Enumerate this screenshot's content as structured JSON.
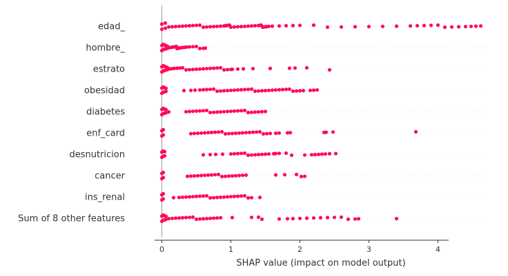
{
  "chart_data": {
    "type": "scatter",
    "title": "",
    "xlabel": "SHAP value (impact on model output)",
    "ylabel": "",
    "xlim": [
      -0.03,
      4.7
    ],
    "x_ticks": [
      0,
      1,
      2,
      3,
      4
    ],
    "x_tick_labels": [
      "0",
      "1",
      "2",
      "3",
      "4"
    ],
    "grid": false,
    "point_color": "#ff0d57",
    "features": [
      {
        "name": "edad_",
        "points": [
          0.0,
          0.05,
          0.1,
          0.15,
          0.2,
          0.25,
          0.3,
          0.35,
          0.4,
          0.45,
          0.5,
          0.55,
          0.6,
          0.65,
          0.7,
          0.75,
          0.8,
          0.85,
          0.9,
          0.92,
          0.94,
          0.96,
          0.98,
          1.0,
          1.05,
          1.1,
          1.15,
          1.2,
          1.25,
          1.3,
          1.35,
          1.4,
          1.42,
          1.44,
          1.46,
          1.48,
          1.5,
          1.52,
          1.55,
          1.6,
          1.7,
          1.8,
          1.9,
          2.0,
          2.2,
          2.4,
          2.6,
          2.8,
          3.0,
          3.2,
          3.4,
          3.6,
          3.7,
          3.8,
          3.9,
          4.0,
          4.1,
          4.2,
          4.3,
          4.4,
          4.48,
          4.55,
          4.62
        ]
      },
      {
        "name": "hombre_",
        "points": [
          0.0,
          0.02,
          0.04,
          0.06,
          0.08,
          0.1,
          0.12,
          0.14,
          0.16,
          0.18,
          0.2,
          0.21,
          0.22,
          0.23,
          0.24,
          0.26,
          0.28,
          0.3,
          0.33,
          0.36,
          0.4,
          0.45,
          0.5,
          0.55,
          0.6,
          0.63
        ]
      },
      {
        "name": "estrato",
        "points": [
          0.0,
          0.02,
          0.04,
          0.06,
          0.08,
          0.1,
          0.12,
          0.15,
          0.18,
          0.22,
          0.26,
          0.3,
          0.35,
          0.4,
          0.45,
          0.5,
          0.55,
          0.6,
          0.65,
          0.7,
          0.75,
          0.8,
          0.85,
          0.9,
          0.95,
          1.0,
          1.02,
          1.1,
          1.18,
          1.32,
          1.57,
          1.85,
          1.93,
          2.1,
          2.43
        ]
      },
      {
        "name": "obesidad",
        "points": [
          0.0,
          0.02,
          0.04,
          0.06,
          0.32,
          0.42,
          0.48,
          0.55,
          0.6,
          0.65,
          0.7,
          0.75,
          0.8,
          0.85,
          0.9,
          0.95,
          1.0,
          1.05,
          1.1,
          1.15,
          1.2,
          1.25,
          1.3,
          1.35,
          1.4,
          1.45,
          1.5,
          1.55,
          1.6,
          1.65,
          1.7,
          1.75,
          1.8,
          1.85,
          1.9,
          1.95,
          2.0,
          2.05,
          2.15,
          2.2,
          2.25
        ]
      },
      {
        "name": "diabetes",
        "points": [
          0.0,
          0.02,
          0.04,
          0.06,
          0.1,
          0.35,
          0.4,
          0.45,
          0.5,
          0.55,
          0.6,
          0.65,
          0.7,
          0.75,
          0.8,
          0.85,
          0.9,
          0.95,
          1.0,
          1.05,
          1.1,
          1.15,
          1.2,
          1.25,
          1.3,
          1.35,
          1.4,
          1.45,
          1.5
        ]
      },
      {
        "name": "enf_card",
        "points": [
          0.0,
          0.02,
          0.42,
          0.47,
          0.52,
          0.57,
          0.62,
          0.67,
          0.72,
          0.77,
          0.82,
          0.87,
          0.92,
          0.97,
          1.02,
          1.07,
          1.12,
          1.17,
          1.22,
          1.27,
          1.32,
          1.37,
          1.42,
          1.47,
          1.52,
          1.57,
          1.65,
          1.7,
          1.82,
          1.86,
          2.35,
          2.38,
          2.48,
          3.68
        ]
      },
      {
        "name": "desnutricion",
        "points": [
          0.0,
          0.02,
          0.04,
          0.6,
          0.7,
          0.78,
          0.88,
          1.0,
          1.05,
          1.1,
          1.15,
          1.2,
          1.25,
          1.3,
          1.35,
          1.4,
          1.45,
          1.5,
          1.55,
          1.62,
          1.65,
          1.7,
          1.8,
          1.88,
          2.07,
          2.17,
          2.22,
          2.27,
          2.32,
          2.37,
          2.43,
          2.52
        ]
      },
      {
        "name": "cancer",
        "points": [
          0.0,
          0.02,
          0.37,
          0.42,
          0.47,
          0.52,
          0.57,
          0.62,
          0.67,
          0.72,
          0.77,
          0.82,
          0.87,
          0.92,
          0.97,
          1.02,
          1.07,
          1.12,
          1.17,
          1.22,
          1.65,
          1.78,
          1.95,
          2.02,
          2.07
        ]
      },
      {
        "name": "ins_renal",
        "points": [
          0.0,
          0.02,
          0.17,
          0.25,
          0.3,
          0.35,
          0.4,
          0.45,
          0.5,
          0.55,
          0.6,
          0.65,
          0.7,
          0.75,
          0.8,
          0.85,
          0.9,
          0.95,
          1.0,
          1.05,
          1.1,
          1.15,
          1.2,
          1.25,
          1.3,
          1.42
        ]
      },
      {
        "name": "Sum of 8 other features",
        "points": [
          0.0,
          0.02,
          0.04,
          0.06,
          0.1,
          0.15,
          0.2,
          0.25,
          0.3,
          0.35,
          0.4,
          0.45,
          0.5,
          0.55,
          0.6,
          0.65,
          0.7,
          0.75,
          0.8,
          0.85,
          1.02,
          1.3,
          1.4,
          1.45,
          1.7,
          1.82,
          1.9,
          2.0,
          2.1,
          2.2,
          2.3,
          2.4,
          2.5,
          2.6,
          2.7,
          2.8,
          2.85,
          3.4
        ]
      }
    ]
  }
}
